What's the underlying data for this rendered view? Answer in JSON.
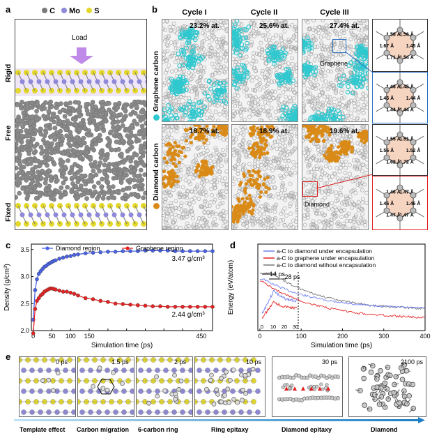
{
  "panel_a": {
    "label": "a",
    "legend": [
      {
        "symbol": "C",
        "color": "#7a7a7a"
      },
      {
        "symbol": "Mo",
        "color": "#8f89d9"
      },
      {
        "symbol": "S",
        "color": "#e4d82a"
      }
    ],
    "load_label": "Load",
    "regions": [
      "Rigid",
      "Free",
      "Fixed"
    ]
  },
  "panel_b": {
    "label": "b",
    "cycles": [
      "Cycle I",
      "Cycle II",
      "Cycle III"
    ],
    "rows": [
      {
        "name": "Graphene carbon",
        "color": "#2fc8cf",
        "percents": [
          "23.2% at.",
          "25.6% at.",
          "27.4% at."
        ],
        "annotation": "Graphene"
      },
      {
        "name": "Diamond carbon",
        "color": "#d98a17",
        "percents": [
          "18.7% at.",
          "18.9% at.",
          "19.6% at."
        ],
        "annotation": "Diamond"
      }
    ],
    "zoom_bonds": {
      "z1": [
        "1.54 Å",
        "1.71 Å",
        "1.67 Å",
        "1.58 Å",
        "1.56 Å",
        "1.45 Å"
      ],
      "z2": [
        "1.44 Å",
        "1.44 Å",
        "1.46 Å",
        "1.46 Å",
        "1.45 Å",
        "1.44 Å"
      ],
      "z3": [
        "1.72 Å",
        "1.62 Å",
        "1.56 Å",
        "1.55 Å",
        "1.51 Å",
        "1.52 Å"
      ],
      "z4": [
        "1.47 Å",
        "1.47 Å",
        "1.46 Å",
        "1.46 Å",
        "1.47 Å",
        "1.46 Å"
      ]
    }
  },
  "panel_c": {
    "label": "c",
    "chart_data": {
      "type": "line",
      "xlabel": "Simulation time (ps)",
      "ylabel": "Density (g/cm³)",
      "xlim": [
        -5,
        480
      ],
      "ylim": [
        2.0,
        3.6
      ],
      "xticks": [
        0,
        50,
        100,
        150,
        200,
        250,
        300,
        350,
        400,
        450
      ],
      "xticklabels": [
        "0",
        "50",
        "100",
        "150",
        "",
        "",
        "",
        "",
        "",
        "450"
      ],
      "yticks": [
        2.0,
        2.5,
        3.0,
        3.5
      ],
      "yticklabels": [
        "2.0",
        "2.5",
        "3.0",
        "3.5"
      ],
      "series": [
        {
          "name": "Diamond region",
          "color": "#4a63e6",
          "x": [
            0,
            5,
            10,
            15,
            20,
            25,
            30,
            35,
            40,
            45,
            50,
            55,
            60,
            70,
            80,
            90,
            100,
            110,
            120,
            140,
            160,
            180,
            200,
            220,
            240,
            260,
            280,
            300,
            320,
            340,
            360,
            380,
            400,
            420,
            440,
            460,
            480
          ],
          "y": [
            2.2,
            2.75,
            2.95,
            3.05,
            3.1,
            3.14,
            3.18,
            3.2,
            3.23,
            3.25,
            3.27,
            3.29,
            3.3,
            3.33,
            3.35,
            3.37,
            3.38,
            3.4,
            3.41,
            3.43,
            3.44,
            3.45,
            3.46,
            3.46,
            3.47,
            3.47,
            3.47,
            3.48,
            3.48,
            3.48,
            3.48,
            3.47,
            3.47,
            3.47,
            3.47,
            3.47,
            3.47
          ]
        },
        {
          "name": "Graphene region",
          "color": "#e62222",
          "x": [
            0,
            5,
            10,
            15,
            20,
            25,
            30,
            35,
            40,
            45,
            50,
            55,
            60,
            70,
            80,
            90,
            100,
            110,
            120,
            140,
            160,
            180,
            200,
            220,
            240,
            260,
            280,
            300,
            320,
            340,
            360,
            380,
            400,
            420,
            440,
            460,
            480
          ],
          "y": [
            1.95,
            2.4,
            2.55,
            2.6,
            2.65,
            2.68,
            2.72,
            2.74,
            2.76,
            2.78,
            2.78,
            2.77,
            2.76,
            2.74,
            2.72,
            2.72,
            2.7,
            2.68,
            2.65,
            2.6,
            2.58,
            2.55,
            2.53,
            2.5,
            2.49,
            2.48,
            2.47,
            2.46,
            2.45,
            2.45,
            2.44,
            2.44,
            2.44,
            2.44,
            2.44,
            2.44,
            2.44
          ]
        }
      ],
      "annotations": [
        "3.47 g/cm³",
        "2.44 g/cm³"
      ],
      "legend": "top-left"
    }
  },
  "panel_d": {
    "label": "d",
    "chart_data": {
      "type": "line",
      "xlabel": "Simulation time (ps)",
      "ylabel": "Energy (eV/atom)",
      "xlim": [
        -5,
        400
      ],
      "xticks": [
        0,
        100,
        200,
        300,
        400
      ],
      "xticklabels": [
        "0",
        "100",
        "200",
        "300",
        "400"
      ],
      "series": [
        {
          "name": "a-C to diamond under encapsulation",
          "color": "#6f7ff0"
        },
        {
          "name": "a-C to graphene under encapsulation",
          "color": "#e62222"
        },
        {
          "name": "a-C to diamond without encapsulation",
          "color": "#777777"
        }
      ],
      "inset": {
        "xticklabels": [
          "0",
          "10",
          "20",
          "30"
        ],
        "annotation": "14 ps"
      },
      "annotations": [
        "28 ps"
      ],
      "legend": "top"
    }
  },
  "panel_e": {
    "label": "e",
    "times": [
      "0 ps",
      "1.5 ps",
      "2 ps",
      "10 ps",
      "30 ps",
      "2100 ps"
    ],
    "stages": [
      "Template effect",
      "Carbon migration",
      "6-carbon ring",
      "Ring epitaxy",
      "Diamond epitaxy",
      "Diamond"
    ]
  }
}
